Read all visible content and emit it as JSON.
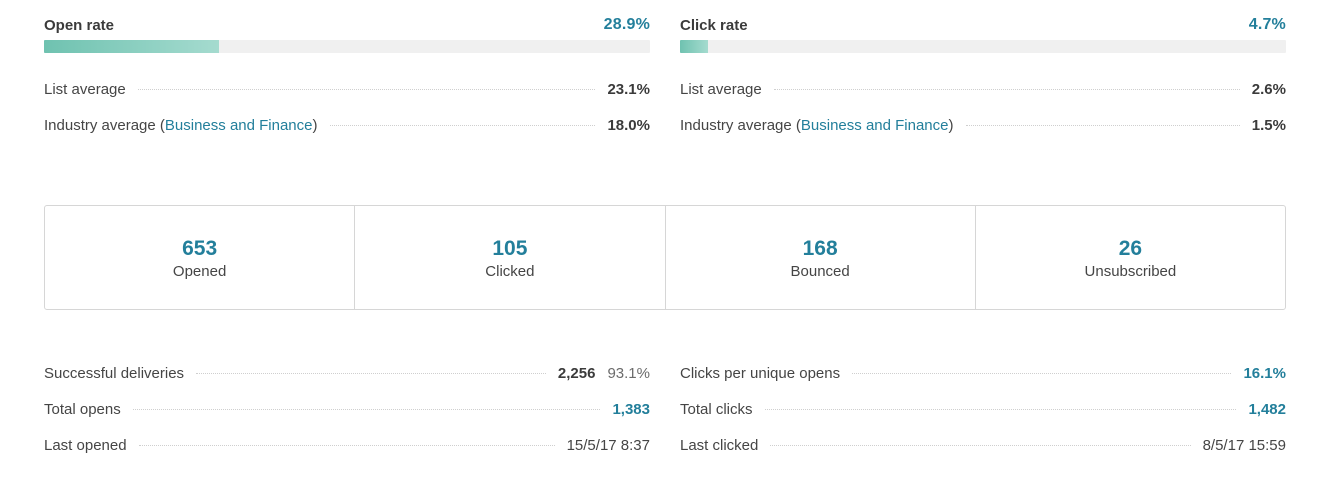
{
  "open_rate": {
    "title": "Open rate",
    "value": "28.9%",
    "fill_fraction": 0.289,
    "list_average_label": "List average",
    "list_average_value": "23.1%",
    "industry_label_prefix": "Industry average (",
    "industry_link": "Business and Finance",
    "industry_label_suffix": ")",
    "industry_value": "18.0%"
  },
  "click_rate": {
    "title": "Click rate",
    "value": "4.7%",
    "fill_fraction": 0.047,
    "list_average_label": "List average",
    "list_average_value": "2.6%",
    "industry_label_prefix": "Industry average (",
    "industry_link": "Business and Finance",
    "industry_label_suffix": ")",
    "industry_value": "1.5%"
  },
  "stats": [
    {
      "number": "653",
      "label": "Opened"
    },
    {
      "number": "105",
      "label": "Clicked"
    },
    {
      "number": "168",
      "label": "Bounced"
    },
    {
      "number": "26",
      "label": "Unsubscribed"
    }
  ],
  "details_left": {
    "deliveries_label": "Successful deliveries",
    "deliveries_value": "2,256",
    "deliveries_pct": "93.1%",
    "total_opens_label": "Total opens",
    "total_opens_value": "1,383",
    "last_opened_label": "Last opened",
    "last_opened_value": "15/5/17 8:37"
  },
  "details_right": {
    "cpuo_label": "Clicks per unique opens",
    "cpuo_value": "16.1%",
    "total_clicks_label": "Total clicks",
    "total_clicks_value": "1,482",
    "last_clicked_label": "Last clicked",
    "last_clicked_value": "8/5/17 15:59"
  },
  "colors": {
    "accent": "#237f9b",
    "bar_fill_start": "#6fc2b0",
    "bar_fill_end": "#a5dbcf",
    "bar_track": "#f0f0f0"
  }
}
